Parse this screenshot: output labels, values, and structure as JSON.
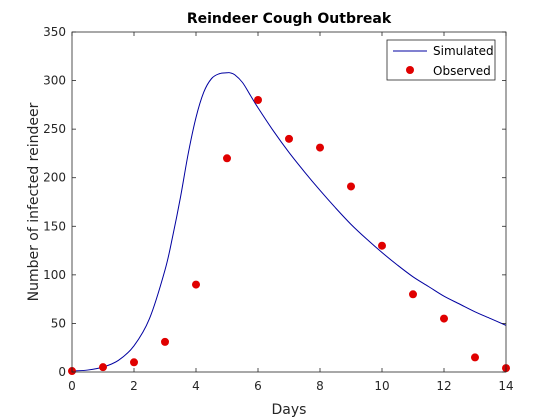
{
  "chart_data": {
    "type": "line",
    "title": "Reindeer Cough Outbreak",
    "xlabel": "Days",
    "ylabel": "Number of infected reindeer",
    "xlim": [
      0,
      14
    ],
    "ylim": [
      0,
      350
    ],
    "xticks": [
      0,
      2,
      4,
      6,
      8,
      10,
      12,
      14
    ],
    "yticks": [
      0,
      50,
      100,
      150,
      200,
      250,
      300,
      350
    ],
    "grid": false,
    "legend_position": "top-right",
    "series": [
      {
        "name": "Simulated",
        "style": "line",
        "color": "#0000a0",
        "x": [
          0,
          0.5,
          1,
          1.5,
          2,
          2.5,
          3,
          3.25,
          3.5,
          3.75,
          4,
          4.25,
          4.5,
          4.75,
          5,
          5.1,
          5.25,
          5.5,
          5.75,
          6,
          6.5,
          7,
          7.5,
          8,
          8.5,
          9,
          9.5,
          10,
          10.5,
          11,
          11.5,
          12,
          12.5,
          13,
          13.5,
          14
        ],
        "y": [
          1,
          2,
          5,
          12,
          27,
          55,
          105,
          140,
          180,
          225,
          262,
          288,
          302,
          307,
          308,
          308,
          306,
          298,
          285,
          272,
          248,
          226,
          206,
          187,
          169,
          152,
          137,
          123,
          110,
          98,
          88,
          78,
          70,
          62,
          55,
          48
        ]
      },
      {
        "name": "Observed",
        "style": "scatter",
        "color": "#e00000",
        "x": [
          0,
          1,
          2,
          3,
          4,
          5,
          6,
          7,
          8,
          9,
          10,
          11,
          12,
          13,
          14
        ],
        "y": [
          1,
          5,
          10,
          31,
          90,
          220,
          280,
          240,
          231,
          191,
          130,
          80,
          55,
          15,
          4
        ]
      }
    ]
  }
}
